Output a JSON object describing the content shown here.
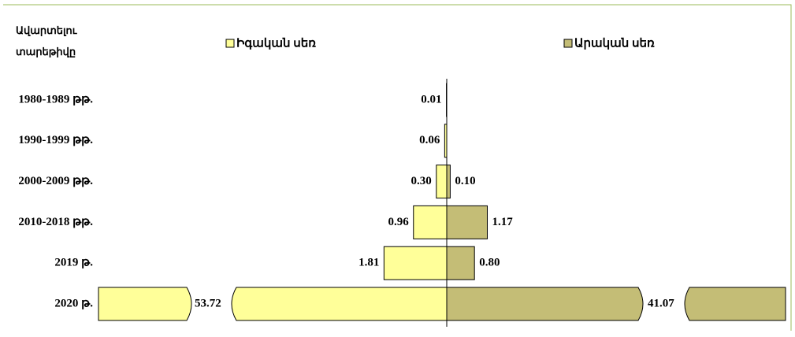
{
  "chart_data": {
    "type": "diverging_bar",
    "y_title_lines": [
      "Ավարտելու",
      "տարեթիվը"
    ],
    "categories": [
      "1980-1989 թթ.",
      "1990-1999 թթ.",
      "2000-2009 թթ.",
      "2010-2018 թթ.",
      "2019 թ.",
      "2020 թ."
    ],
    "series": [
      {
        "name": "Իգական սեռ",
        "color": "#ffff99",
        "side": "left",
        "values": [
          0.01,
          0.06,
          0.3,
          0.96,
          1.81,
          53.72
        ],
        "value_labels": [
          "0.01",
          "0.06",
          "0.30",
          "0.96",
          "1.81",
          "53.72"
        ]
      },
      {
        "name": "Արական սեռ",
        "color": "#c4bd76",
        "side": "right",
        "values": [
          null,
          null,
          0.1,
          1.17,
          0.8,
          41.07
        ],
        "value_labels": [
          null,
          null,
          "0.10",
          "1.17",
          "0.80",
          "41.07"
        ]
      }
    ]
  }
}
